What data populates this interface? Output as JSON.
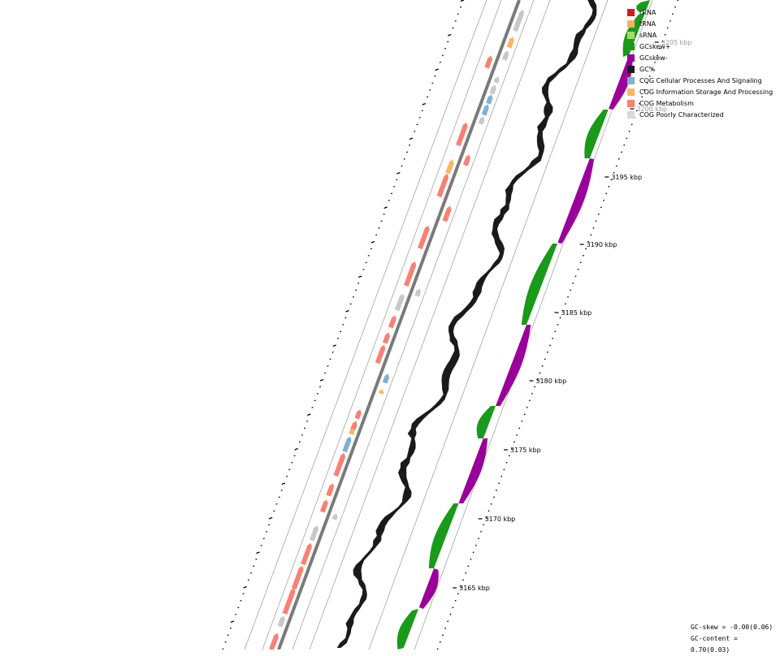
{
  "map": {
    "position_labels": [
      {
        "text": "3205 kbp",
        "faded": true
      },
      {
        "text": "3200 kbp",
        "faded": true
      },
      {
        "text": "3195 kbp",
        "faded": false
      },
      {
        "text": "3190 kbp",
        "faded": false
      },
      {
        "text": "3185 kbp",
        "faded": false
      },
      {
        "text": "3180 kbp",
        "faded": false
      },
      {
        "text": "3175 kbp",
        "faded": false
      },
      {
        "text": "3170 kbp",
        "faded": false
      },
      {
        "text": "3165 kbp",
        "faded": false
      }
    ]
  },
  "legend": {
    "items": [
      {
        "label": "rRNA",
        "color": "#d7191c"
      },
      {
        "label": "tRNA",
        "color": "#fdae61"
      },
      {
        "label": "sRNA",
        "color": "#a6d96a"
      },
      {
        "label": "GCskew+",
        "color": "#1a9a1a"
      },
      {
        "label": "GCskew-",
        "color": "#990099"
      },
      {
        "label": "GC%",
        "color": "#1a1a1a"
      },
      {
        "label": "COG Cellular Processes And Signaling",
        "color": "#80b1d3"
      },
      {
        "label": "COG Information Storage And Processing",
        "color": "#fdb462"
      },
      {
        "label": "COG Metabolism",
        "color": "#fb8072"
      },
      {
        "label": "COG Poorly Characterized",
        "color": "#d9d9d9"
      }
    ]
  },
  "stats": {
    "gc_skew": "GC-skew = -0.00(0.06)",
    "gc_content": "GC-content = 0.70(0.03)"
  },
  "colors": {
    "backbone": "#7a7a7a",
    "guide_line": "#888888",
    "gc_percent": "#1a1a1a",
    "gc_skew_pos": "#1a9a1a",
    "gc_skew_neg": "#990099",
    "cog_cellular": "#80b1d3",
    "cog_information": "#fdb462",
    "cog_metabolism": "#fb8072",
    "cog_poor": "#c8c8c8"
  }
}
